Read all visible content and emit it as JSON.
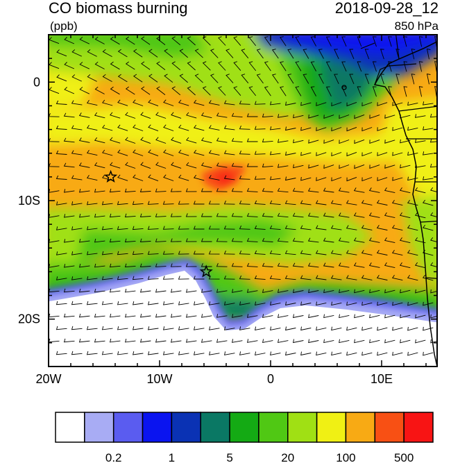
{
  "title": "CO biomass burning",
  "units": "(ppb)",
  "datetime": "2018-09-28_12",
  "level": "850 hPa",
  "x_ticks": [
    {
      "lon": -20,
      "label": "20W"
    },
    {
      "lon": -10,
      "label": "10W"
    },
    {
      "lon": 0,
      "label": "0"
    },
    {
      "lon": 10,
      "label": "10E"
    }
  ],
  "y_ticks": [
    {
      "lat": 0,
      "label": "0"
    },
    {
      "lat": -10,
      "label": "10S"
    },
    {
      "lat": -20,
      "label": "20S"
    }
  ],
  "extent": {
    "lon_min": -20,
    "lon_max": 15,
    "lat_min": -24,
    "lat_max": 4
  },
  "markers": [
    {
      "name": "star-1",
      "lon": -14.4,
      "lat": -8.0
    },
    {
      "name": "star-2",
      "lon": -5.8,
      "lat": -16.0
    }
  ],
  "colorbar": {
    "colors": [
      "#ffffff",
      "#a8acf4",
      "#5a5cf0",
      "#0a14f0",
      "#0a32b4",
      "#0a7864",
      "#14aa14",
      "#50c814",
      "#a0e014",
      "#f0f014",
      "#f8aa14",
      "#f85014",
      "#f81414"
    ],
    "labels": [
      {
        "after_bin": 1,
        "text": "0.2"
      },
      {
        "after_bin": 3,
        "text": "1"
      },
      {
        "after_bin": 5,
        "text": "5"
      },
      {
        "after_bin": 7,
        "text": "20"
      },
      {
        "after_bin": 9,
        "text": "100"
      },
      {
        "after_bin": 11,
        "text": "500"
      }
    ]
  }
}
